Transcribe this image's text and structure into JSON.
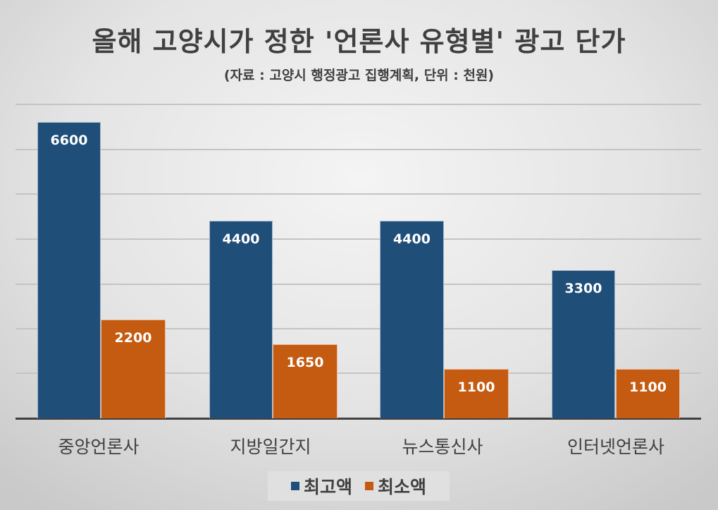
{
  "chart_data": {
    "type": "bar",
    "title": "올해 고양시가 정한 '언론사 유형별' 광고 단가",
    "subtitle": "(자료 : 고양시 행정광고 집행계획,  단위 : 천원)",
    "categories": [
      "중앙언론사",
      "지방일간지",
      "뉴스통신사",
      "인터넷언론사"
    ],
    "series": [
      {
        "name": "최고액",
        "color": "#1f4e79",
        "values": [
          6600,
          4400,
          4400,
          3300
        ]
      },
      {
        "name": "최소액",
        "color": "#c55a11",
        "values": [
          2200,
          1650,
          1100,
          1100
        ]
      }
    ],
    "xlabel": "",
    "ylabel": "",
    "ylim": [
      0,
      7000
    ],
    "y_gridline_step": 1000,
    "grid": true,
    "y_axis_labels_visible": false,
    "data_labels": true,
    "legend_position": "bottom"
  },
  "labels": {
    "c0": {
      "s0": "6600",
      "s1": "2200"
    },
    "c1": {
      "s0": "4400",
      "s1": "1650"
    },
    "c2": {
      "s0": "4400",
      "s1": "1100"
    },
    "c3": {
      "s0": "3300",
      "s1": "1100"
    }
  }
}
